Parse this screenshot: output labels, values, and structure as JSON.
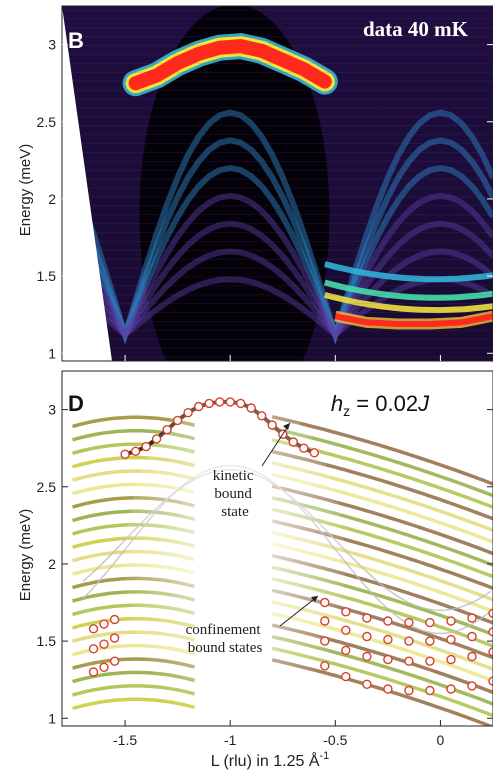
{
  "chart_data": [
    {
      "type": "heatmap",
      "panel_label": "B",
      "annotation": "data 40 mK",
      "ylabel": "Energy (meV)",
      "ylim": [
        0.95,
        3.25
      ],
      "xlim": [
        -1.8,
        0.25
      ],
      "yticks": [
        "1",
        "1.5",
        "2",
        "2.5",
        "3"
      ],
      "yticks_values": [
        1,
        1.5,
        2,
        2.5,
        3
      ],
      "colormap": [
        "#000000",
        "#3a0b5e",
        "#6a3fa0",
        "#2aa7d6",
        "#66e0c0",
        "#f5e642",
        "#ff2a1a"
      ],
      "dispersion_top": {
        "L": [
          -1.45,
          -1.35,
          -1.25,
          -1.15,
          -1.05,
          -0.95,
          -0.85,
          -0.75,
          -0.65,
          -0.55
        ],
        "energy": [
          2.75,
          2.8,
          2.88,
          2.94,
          2.98,
          2.99,
          2.96,
          2.9,
          2.84,
          2.76
        ]
      },
      "low_band": {
        "L": [
          -0.5,
          -0.35,
          -0.2,
          -0.05,
          0.1,
          0.25
        ],
        "energy": [
          1.24,
          1.2,
          1.19,
          1.19,
          1.2,
          1.24
        ]
      }
    },
    {
      "type": "scatter",
      "panel_label": "D",
      "annotation": "h_z = 0.02J",
      "annotations": [
        "kinetic bound state",
        "confinement bound states"
      ],
      "xlabel": "L (rlu) in 1.25 Å⁻¹",
      "ylabel": "Energy (meV)",
      "xlim": [
        -1.8,
        0.25
      ],
      "ylim": [
        0.95,
        3.25
      ],
      "xticks": [
        "-1.5",
        "-1",
        "-0.5",
        "0"
      ],
      "xticks_values": [
        -1.5,
        -1,
        -0.5,
        0
      ],
      "yticks": [
        "1",
        "1.5",
        "2",
        "2.5",
        "3"
      ],
      "yticks_values": [
        1,
        1.5,
        2,
        2.5,
        3
      ],
      "series": [
        {
          "points_x": [
            -1.5,
            -1.45,
            -1.4,
            -1.35,
            -1.3,
            -1.25,
            -1.2,
            -1.15,
            -1.1,
            -1.05,
            -1.0,
            -0.95,
            -0.9,
            -0.85,
            -0.8,
            -0.75,
            -0.7,
            -0.65,
            -0.6
          ],
          "points_y": [
            2.71,
            2.73,
            2.76,
            2.81,
            2.87,
            2.93,
            2.98,
            3.02,
            3.04,
            3.05,
            3.05,
            3.04,
            3.01,
            2.96,
            2.9,
            2.84,
            2.79,
            2.75,
            2.72
          ]
        },
        {
          "points_x": [
            -0.55,
            -0.45,
            -0.35,
            -0.25,
            -0.15,
            -0.05,
            0.05,
            0.15,
            0.25
          ],
          "points_y": [
            1.34,
            1.27,
            1.22,
            1.19,
            1.18,
            1.18,
            1.19,
            1.21,
            1.24
          ]
        },
        {
          "points_x": [
            -0.55,
            -0.45,
            -0.35,
            -0.25,
            -0.15,
            -0.05,
            0.05,
            0.15,
            0.25
          ],
          "points_y": [
            1.5,
            1.44,
            1.4,
            1.38,
            1.37,
            1.37,
            1.38,
            1.4,
            1.43
          ]
        },
        {
          "points_x": [
            -0.55,
            -0.45,
            -0.35,
            -0.25,
            -0.15,
            -0.05,
            0.05,
            0.15,
            0.25
          ],
          "points_y": [
            1.63,
            1.57,
            1.53,
            1.51,
            1.5,
            1.5,
            1.51,
            1.53,
            1.56
          ]
        },
        {
          "points_x": [
            -0.55,
            -0.45,
            -0.35,
            -0.25,
            -0.15,
            -0.05,
            0.05,
            0.15,
            0.25
          ],
          "points_y": [
            1.75,
            1.69,
            1.65,
            1.63,
            1.62,
            1.62,
            1.63,
            1.65,
            1.68
          ]
        },
        {
          "points_x": [
            -1.65,
            -1.6,
            -1.55
          ],
          "points_y": [
            1.3,
            1.33,
            1.37
          ]
        },
        {
          "points_x": [
            -1.65,
            -1.6,
            -1.55
          ],
          "points_y": [
            1.45,
            1.48,
            1.52
          ]
        },
        {
          "points_x": [
            -1.65,
            -1.6,
            -1.55
          ],
          "points_y": [
            1.58,
            1.61,
            1.64
          ]
        }
      ]
    }
  ]
}
